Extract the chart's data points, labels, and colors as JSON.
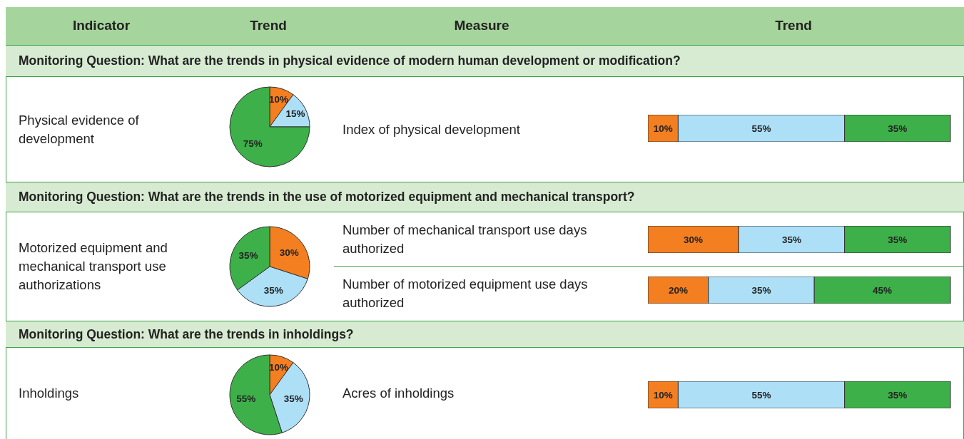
{
  "chart_data": [
    {
      "type": "other",
      "annotations": [
        "Indicator",
        "Trend",
        "Measure",
        "Trend"
      ]
    },
    {
      "type": "other",
      "title": "Monitoring Question: What are the trends in physical evidence of modern human development or modification?"
    },
    {
      "type": "other",
      "title": "Physical evidence of development"
    },
    {
      "type": "pie",
      "categories": [
        null,
        null,
        null
      ],
      "values": [
        10,
        15,
        75
      ],
      "colors": [
        "#f47f20",
        "#addff7",
        "#3db049"
      ],
      "value_labels": [
        "10%",
        "15%",
        "75%"
      ]
    },
    {
      "type": "other",
      "title": "Index of physical development"
    },
    {
      "type": "bar",
      "orientation": "horizontal",
      "stacked": true,
      "categories": [
        null
      ],
      "series": [
        {
          "color": "#f47f20",
          "values": [
            10
          ],
          "value_labels": [
            "10%"
          ]
        },
        {
          "color": "#addff7",
          "values": [
            55
          ],
          "value_labels": [
            "55%"
          ]
        },
        {
          "color": "#3db049",
          "values": [
            35
          ],
          "value_labels": [
            "35%"
          ]
        }
      ]
    },
    {
      "type": "other",
      "title": "Monitoring Question: What are the trends in the use of motorized equipment and mechanical transport?"
    },
    {
      "type": "other",
      "title": "Motorized equipment and mechanical transport use authorizations"
    },
    {
      "type": "pie",
      "categories": [
        null,
        null,
        null
      ],
      "values": [
        30,
        35,
        35
      ],
      "colors": [
        "#f47f20",
        "#addff7",
        "#3db049"
      ],
      "value_labels": [
        "30%",
        "35%",
        "35%"
      ]
    },
    {
      "type": "other",
      "title": "Number of mechanical transport use days authorized"
    },
    {
      "type": "bar",
      "orientation": "horizontal",
      "stacked": true,
      "categories": [
        null
      ],
      "series": [
        {
          "color": "#f47f20",
          "values": [
            30
          ],
          "value_labels": [
            "30%"
          ]
        },
        {
          "color": "#addff7",
          "values": [
            35
          ],
          "value_labels": [
            "35%"
          ]
        },
        {
          "color": "#3db049",
          "values": [
            35
          ],
          "value_labels": [
            "35%"
          ]
        }
      ]
    },
    {
      "type": "other",
      "title": "Number of motorized equipment use days authorized"
    },
    {
      "type": "bar",
      "orientation": "horizontal",
      "stacked": true,
      "categories": [
        null
      ],
      "series": [
        {
          "color": "#f47f20",
          "values": [
            20
          ],
          "value_labels": [
            "20%"
          ]
        },
        {
          "color": "#addff7",
          "values": [
            35
          ],
          "value_labels": [
            "35%"
          ]
        },
        {
          "color": "#3db049",
          "values": [
            45
          ],
          "value_labels": [
            "45%"
          ]
        }
      ]
    },
    {
      "type": "other",
      "title": "Monitoring Question: What are the trends in inholdings?"
    },
    {
      "type": "other",
      "title": "Inholdings"
    },
    {
      "type": "pie",
      "categories": [
        null,
        null,
        null
      ],
      "values": [
        10,
        35,
        55
      ],
      "colors": [
        "#f47f20",
        "#addff7",
        "#3db049"
      ],
      "value_labels": [
        "10%",
        "35%",
        "55%"
      ]
    },
    {
      "type": "other",
      "title": "Acres of inholdings"
    },
    {
      "type": "bar",
      "orientation": "horizontal",
      "stacked": true,
      "categories": [
        null
      ],
      "series": [
        {
          "color": "#f47f20",
          "values": [
            10
          ],
          "value_labels": [
            "10%"
          ]
        },
        {
          "color": "#addff7",
          "values": [
            55
          ],
          "value_labels": [
            "55%"
          ]
        },
        {
          "color": "#3db049",
          "values": [
            35
          ],
          "value_labels": [
            "35%"
          ]
        }
      ]
    }
  ]
}
